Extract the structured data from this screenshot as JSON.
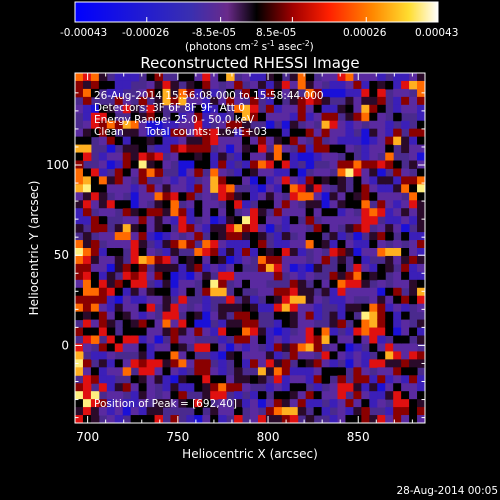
{
  "window": {
    "footer_date": "28-Aug-2014 00:05"
  },
  "colorbar": {
    "colormap": "blue-white-red",
    "colors": [
      "#0000ff",
      "#ffffff",
      "#ff0000",
      "#ffff80",
      "#ffffff"
    ],
    "tick_labels": [
      "-0.00043",
      "-0.00026",
      "-8.5e-05",
      "8.5e-05",
      "0.00026",
      "0.00043"
    ],
    "tick_values": [
      -0.00043,
      -0.00026,
      -8.5e-05,
      8.5e-05,
      0.00026,
      0.00043
    ],
    "range": [
      -0.00043,
      0.00043
    ],
    "units_label": "(photons cm",
    "units_exp1": "-2",
    "units_mid": " s",
    "units_exp2": "-1",
    "units_end": " asec",
    "units_exp3": "-2",
    "units_close": ")"
  },
  "chart_data": {
    "type": "heatmap",
    "title": "Reconstructed RHESSI Image",
    "xlabel": "Heliocentric X (arcsec)",
    "ylabel": "Heliocentric Y (arcsec)",
    "xlim": [
      693,
      887
    ],
    "ylim": [
      -43,
      151
    ],
    "x_ticks": [
      700,
      750,
      800,
      850
    ],
    "y_ticks": [
      0,
      50,
      100
    ],
    "x_tick_labels": [
      "700",
      "750",
      "800",
      "850"
    ],
    "y_tick_labels": [
      "0",
      "50",
      "100"
    ],
    "annotations": [
      "26-Aug-2014 15:56:08.000 to 15:58:44.000",
      "Detectors: 3F 6F 8F 9F, Att 0",
      "Energy Range: 25.0 - 50.0 keV",
      "Clean",
      "Total counts: 1.64E+03"
    ],
    "peak_label": "Position of Peak = [692,40]",
    "grid": false
  }
}
